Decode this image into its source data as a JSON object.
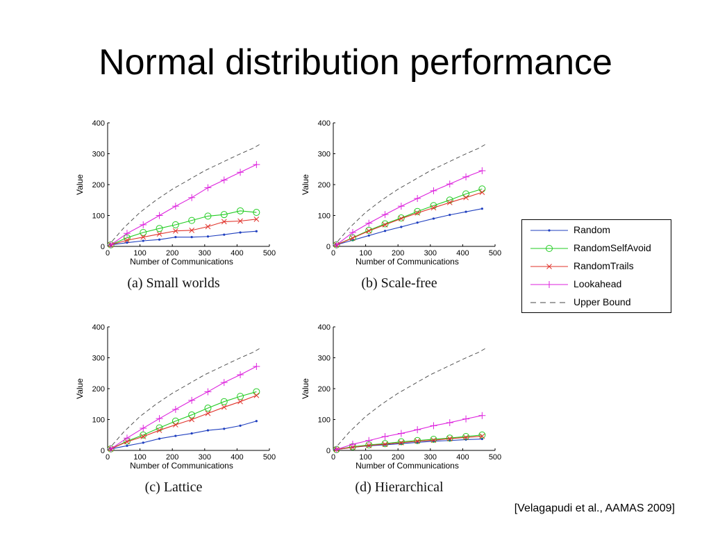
{
  "slide": {
    "title": "Normal distribution performance",
    "citation": "[Velagapudi et al., AAMAS 2009]"
  },
  "legend": {
    "placement": "right",
    "items": [
      {
        "name": "Random",
        "color": "#1f3fbf",
        "marker": "dot",
        "dash": "solid"
      },
      {
        "name": "RandomSelfAvoid",
        "color": "#22cc22",
        "marker": "circle",
        "dash": "solid"
      },
      {
        "name": "RandomTrails",
        "color": "#e0322a",
        "marker": "x",
        "dash": "solid"
      },
      {
        "name": "Lookahead",
        "color": "#dd22dd",
        "marker": "plus",
        "dash": "solid"
      },
      {
        "name": "Upper Bound",
        "color": "#444444",
        "marker": "none",
        "dash": "dashed"
      }
    ]
  },
  "chart_data": [
    {
      "type": "line",
      "caption": "(a) Small worlds",
      "xlabel": "Number of Communications",
      "ylabel": "Value",
      "xlim": [
        0,
        500
      ],
      "ylim": [
        0,
        400
      ],
      "xticks": [
        0,
        100,
        200,
        300,
        400,
        500
      ],
      "yticks": [
        0,
        100,
        200,
        300,
        400
      ],
      "grid": false,
      "x": [
        10,
        60,
        110,
        160,
        210,
        260,
        310,
        360,
        410,
        460
      ],
      "series": [
        {
          "name": "Random",
          "values": [
            5,
            12,
            18,
            22,
            30,
            30,
            32,
            38,
            45,
            49
          ]
        },
        {
          "name": "RandomSelfAvoid",
          "values": [
            5,
            28,
            45,
            58,
            70,
            84,
            98,
            103,
            115,
            110
          ]
        },
        {
          "name": "RandomTrails",
          "values": [
            5,
            20,
            30,
            40,
            50,
            52,
            64,
            80,
            82,
            88
          ]
        },
        {
          "name": "Lookahead",
          "values": [
            5,
            42,
            70,
            100,
            130,
            158,
            190,
            215,
            240,
            265
          ]
        },
        {
          "name": "Upper Bound",
          "x": [
            0,
            50,
            100,
            150,
            200,
            250,
            300,
            350,
            400,
            450,
            470
          ],
          "values": [
            0,
            60,
            110,
            150,
            185,
            215,
            245,
            270,
            295,
            318,
            330
          ]
        }
      ]
    },
    {
      "type": "line",
      "caption": "(b) Scale-free",
      "xlabel": "Number of Communications",
      "ylabel": "Value",
      "xlim": [
        0,
        500
      ],
      "ylim": [
        0,
        400
      ],
      "xticks": [
        0,
        100,
        200,
        300,
        400,
        500
      ],
      "yticks": [
        0,
        100,
        200,
        300,
        400
      ],
      "grid": false,
      "x": [
        10,
        60,
        110,
        160,
        210,
        260,
        310,
        360,
        410,
        460
      ],
      "series": [
        {
          "name": "Random",
          "values": [
            5,
            20,
            35,
            50,
            63,
            77,
            90,
            102,
            112,
            122
          ]
        },
        {
          "name": "RandomSelfAvoid",
          "values": [
            5,
            28,
            52,
            73,
            92,
            113,
            132,
            150,
            170,
            186
          ]
        },
        {
          "name": "RandomTrails",
          "values": [
            5,
            27,
            50,
            70,
            90,
            108,
            125,
            142,
            158,
            175
          ]
        },
        {
          "name": "Lookahead",
          "values": [
            5,
            45,
            75,
            103,
            130,
            155,
            180,
            202,
            225,
            245
          ]
        },
        {
          "name": "Upper Bound",
          "x": [
            0,
            50,
            100,
            150,
            200,
            250,
            300,
            350,
            400,
            450,
            470
          ],
          "values": [
            0,
            60,
            110,
            150,
            185,
            215,
            245,
            270,
            295,
            318,
            330
          ]
        }
      ]
    },
    {
      "type": "line",
      "caption": "(c) Lattice",
      "xlabel": "Number of Communications",
      "ylabel": "Value",
      "xlim": [
        0,
        500
      ],
      "ylim": [
        0,
        400
      ],
      "xticks": [
        0,
        100,
        200,
        300,
        400,
        500
      ],
      "yticks": [
        0,
        100,
        200,
        300,
        400
      ],
      "grid": false,
      "x": [
        10,
        60,
        110,
        160,
        210,
        260,
        310,
        360,
        410,
        460
      ],
      "series": [
        {
          "name": "Random",
          "values": [
            5,
            15,
            25,
            38,
            47,
            55,
            65,
            70,
            80,
            95
          ]
        },
        {
          "name": "RandomSelfAvoid",
          "values": [
            5,
            30,
            50,
            73,
            95,
            115,
            137,
            158,
            175,
            190
          ]
        },
        {
          "name": "RandomTrails",
          "values": [
            5,
            28,
            45,
            65,
            83,
            100,
            120,
            140,
            158,
            178
          ]
        },
        {
          "name": "Lookahead",
          "values": [
            5,
            40,
            72,
            103,
            133,
            162,
            190,
            220,
            245,
            272
          ]
        },
        {
          "name": "Upper Bound",
          "x": [
            0,
            50,
            100,
            150,
            200,
            250,
            300,
            350,
            400,
            450,
            470
          ],
          "values": [
            0,
            60,
            110,
            150,
            185,
            215,
            245,
            270,
            295,
            318,
            330
          ]
        }
      ]
    },
    {
      "type": "line",
      "caption": "(d) Hierarchical",
      "xlabel": "Number of Communications",
      "ylabel": "Value",
      "xlim": [
        0,
        500
      ],
      "ylim": [
        0,
        400
      ],
      "xticks": [
        0,
        100,
        200,
        300,
        400,
        500
      ],
      "yticks": [
        0,
        100,
        200,
        300,
        400
      ],
      "grid": false,
      "x": [
        10,
        60,
        110,
        160,
        210,
        260,
        310,
        360,
        410,
        460
      ],
      "series": [
        {
          "name": "Random",
          "values": [
            3,
            10,
            15,
            18,
            22,
            26,
            30,
            32,
            35,
            37
          ]
        },
        {
          "name": "RandomSelfAvoid",
          "values": [
            3,
            12,
            18,
            22,
            28,
            32,
            36,
            40,
            45,
            50
          ]
        },
        {
          "name": "RandomTrails",
          "values": [
            3,
            10,
            16,
            20,
            25,
            30,
            33,
            38,
            42,
            46
          ]
        },
        {
          "name": "Lookahead",
          "values": [
            3,
            20,
            32,
            45,
            55,
            67,
            80,
            90,
            102,
            113
          ]
        },
        {
          "name": "Upper Bound",
          "x": [
            0,
            50,
            100,
            150,
            200,
            250,
            300,
            350,
            400,
            450,
            470
          ],
          "values": [
            0,
            60,
            110,
            150,
            185,
            215,
            245,
            270,
            295,
            318,
            330
          ]
        }
      ]
    }
  ]
}
